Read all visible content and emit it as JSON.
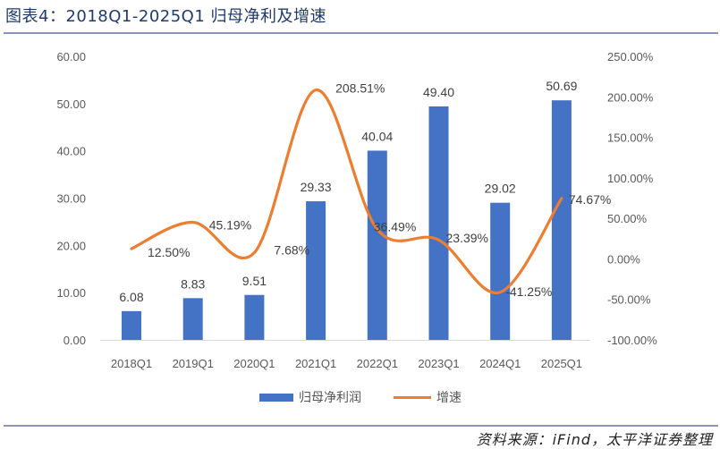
{
  "header": {
    "title": "图表4：2018Q1-2025Q1 归母净利及增速"
  },
  "footer": {
    "source": "资料来源：iFind，太平洋证券整理"
  },
  "legend": {
    "bar_label": "归母净利润",
    "line_label": "增速"
  },
  "colors": {
    "bar": "#4472c4",
    "line": "#ed7d31",
    "title": "#1f3a6e",
    "rule": "#8d92b8",
    "axis_text": "#595959"
  },
  "chart_data": {
    "type": "bar",
    "title": "图表4：2018Q1-2025Q1 归母净利及增速",
    "categories": [
      "2018Q1",
      "2019Q1",
      "2020Q1",
      "2021Q1",
      "2022Q1",
      "2023Q1",
      "2024Q1",
      "2025Q1"
    ],
    "series": [
      {
        "name": "归母净利润",
        "type": "bar",
        "axis": "left",
        "values": [
          6.08,
          8.83,
          9.51,
          29.33,
          40.04,
          49.4,
          29.02,
          50.69
        ],
        "labels": [
          "6.08",
          "8.83",
          "9.51",
          "29.33",
          "40.04",
          "49.40",
          "29.02",
          "50.69"
        ]
      },
      {
        "name": "增速",
        "type": "line",
        "axis": "right",
        "smooth": true,
        "values": [
          12.5,
          45.19,
          7.68,
          208.51,
          36.49,
          23.39,
          -41.25,
          74.67
        ],
        "labels": [
          "12.50%",
          "45.19%",
          "7.68%",
          "208.51%",
          "36.49%",
          "23.39%",
          "-41.25%",
          "74.67%"
        ]
      }
    ],
    "left_axis": {
      "ylim": [
        0,
        60
      ],
      "ticks": [
        "0.00",
        "10.00",
        "20.00",
        "30.00",
        "40.00",
        "50.00",
        "60.00"
      ]
    },
    "right_axis": {
      "ylim": [
        -100,
        250
      ],
      "ticks": [
        "-100.00%",
        "-50.00%",
        "0.00%",
        "50.00%",
        "100.00%",
        "150.00%",
        "200.00%",
        "250.00%"
      ]
    },
    "xlabel": "",
    "ylabel": "",
    "grid": false,
    "legend_position": "bottom"
  }
}
